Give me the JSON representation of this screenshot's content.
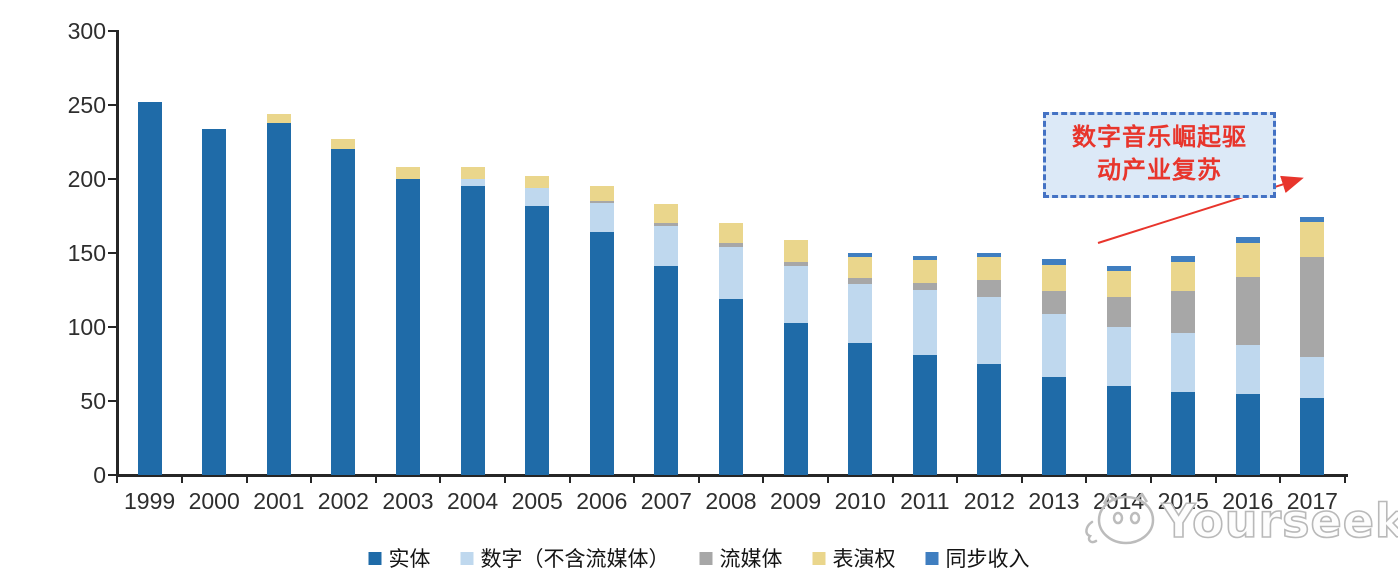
{
  "watermark": {
    "brand": "Yourseeker"
  },
  "annotation": {
    "line1": "数字音乐崛起驱",
    "line2": "动产业复苏"
  },
  "colors": {
    "axis": "#262626",
    "annotation_red": "#E8352C",
    "callout_border": "#4472C4",
    "callout_fill": "#DCE9F7"
  },
  "chart_data": {
    "type": "bar",
    "stacked": true,
    "grid": false,
    "legend_position": "bottom",
    "ylim": [
      0,
      300
    ],
    "yticks": [
      0,
      50,
      100,
      150,
      200,
      250,
      300
    ],
    "categories": [
      "1999",
      "2000",
      "2001",
      "2002",
      "2003",
      "2004",
      "2005",
      "2006",
      "2007",
      "2008",
      "2009",
      "2010",
      "2011",
      "2012",
      "2013",
      "2014",
      "2015",
      "2016",
      "2017"
    ],
    "series": [
      {
        "name": "实体",
        "color": "#1F6BA8",
        "values": [
          252,
          234,
          238,
          220,
          200,
          195,
          182,
          164,
          141,
          119,
          103,
          89,
          81,
          75,
          66,
          60,
          56,
          55,
          52
        ]
      },
      {
        "name": "数字（不含流媒体）",
        "color": "#BFD8EE",
        "values": [
          0,
          0,
          0,
          0,
          0,
          5,
          12,
          20,
          27,
          35,
          38,
          40,
          44,
          45,
          43,
          40,
          40,
          33,
          28
        ]
      },
      {
        "name": "流媒体",
        "color": "#A7A7A7",
        "values": [
          0,
          0,
          0,
          0,
          0,
          0,
          0,
          1,
          2,
          3,
          3,
          4,
          5,
          12,
          15,
          20,
          28,
          46,
          67
        ]
      },
      {
        "name": "表演权",
        "color": "#EAD68C",
        "values": [
          0,
          0,
          6,
          7,
          8,
          8,
          8,
          10,
          13,
          13,
          15,
          14,
          15,
          15,
          18,
          18,
          20,
          23,
          24
        ]
      },
      {
        "name": "同步收入",
        "color": "#3F7EC0",
        "values": [
          0,
          0,
          0,
          0,
          0,
          0,
          0,
          0,
          0,
          0,
          0,
          3,
          3,
          3,
          4,
          3,
          4,
          4,
          3
        ]
      }
    ]
  }
}
